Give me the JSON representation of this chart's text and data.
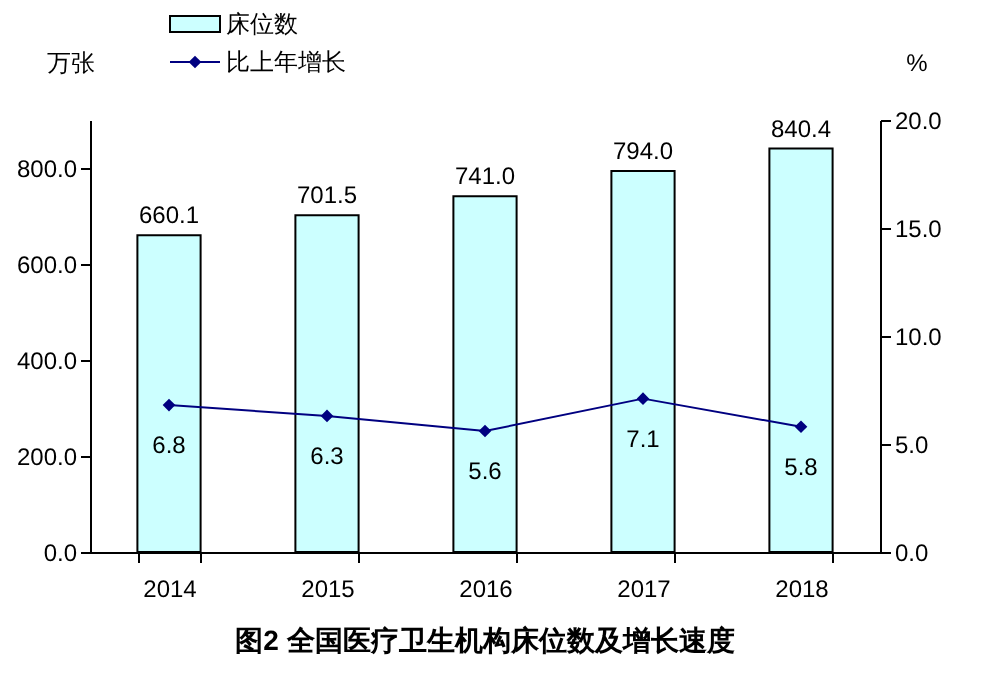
{
  "chart_data": {
    "type": "bar",
    "title": "图2 全国医疗卫生机构床位数及增长速度",
    "ylabel": "万张",
    "y2label": "%",
    "categories": [
      "2014",
      "2015",
      "2016",
      "2017",
      "2018"
    ],
    "series": [
      {
        "name": "床位数",
        "color": "#ccffff",
        "values": [
          660.1,
          701.5,
          741.0,
          794.0,
          840.4
        ],
        "value_labels": [
          "660.1",
          "701.5",
          "741.0",
          "794.0",
          "840.4"
        ]
      },
      {
        "name": "比上年增长",
        "type": "line",
        "axis": "y2",
        "color": "#000080",
        "marker": "diamond",
        "values": [
          6.8,
          6.3,
          5.6,
          7.1,
          5.8
        ],
        "value_labels": [
          "6.8",
          "6.3",
          "5.6",
          "7.1",
          "5.8"
        ]
      }
    ],
    "ylim": [
      0,
      900
    ],
    "yticks": [
      {
        "value": 0,
        "label": "0.0"
      },
      {
        "value": 200,
        "label": "200.0"
      },
      {
        "value": 400,
        "label": "400.0"
      },
      {
        "value": 600,
        "label": "600.0"
      },
      {
        "value": 800,
        "label": "800.0"
      }
    ],
    "y2lim": [
      0,
      20
    ],
    "y2ticks": [
      {
        "value": 0,
        "label": "0.0"
      },
      {
        "value": 5,
        "label": "5.0"
      },
      {
        "value": 10,
        "label": "10.0"
      },
      {
        "value": 15,
        "label": "15.0"
      },
      {
        "value": 20,
        "label": "20.0"
      }
    ],
    "legend": "top left",
    "grid": false
  }
}
